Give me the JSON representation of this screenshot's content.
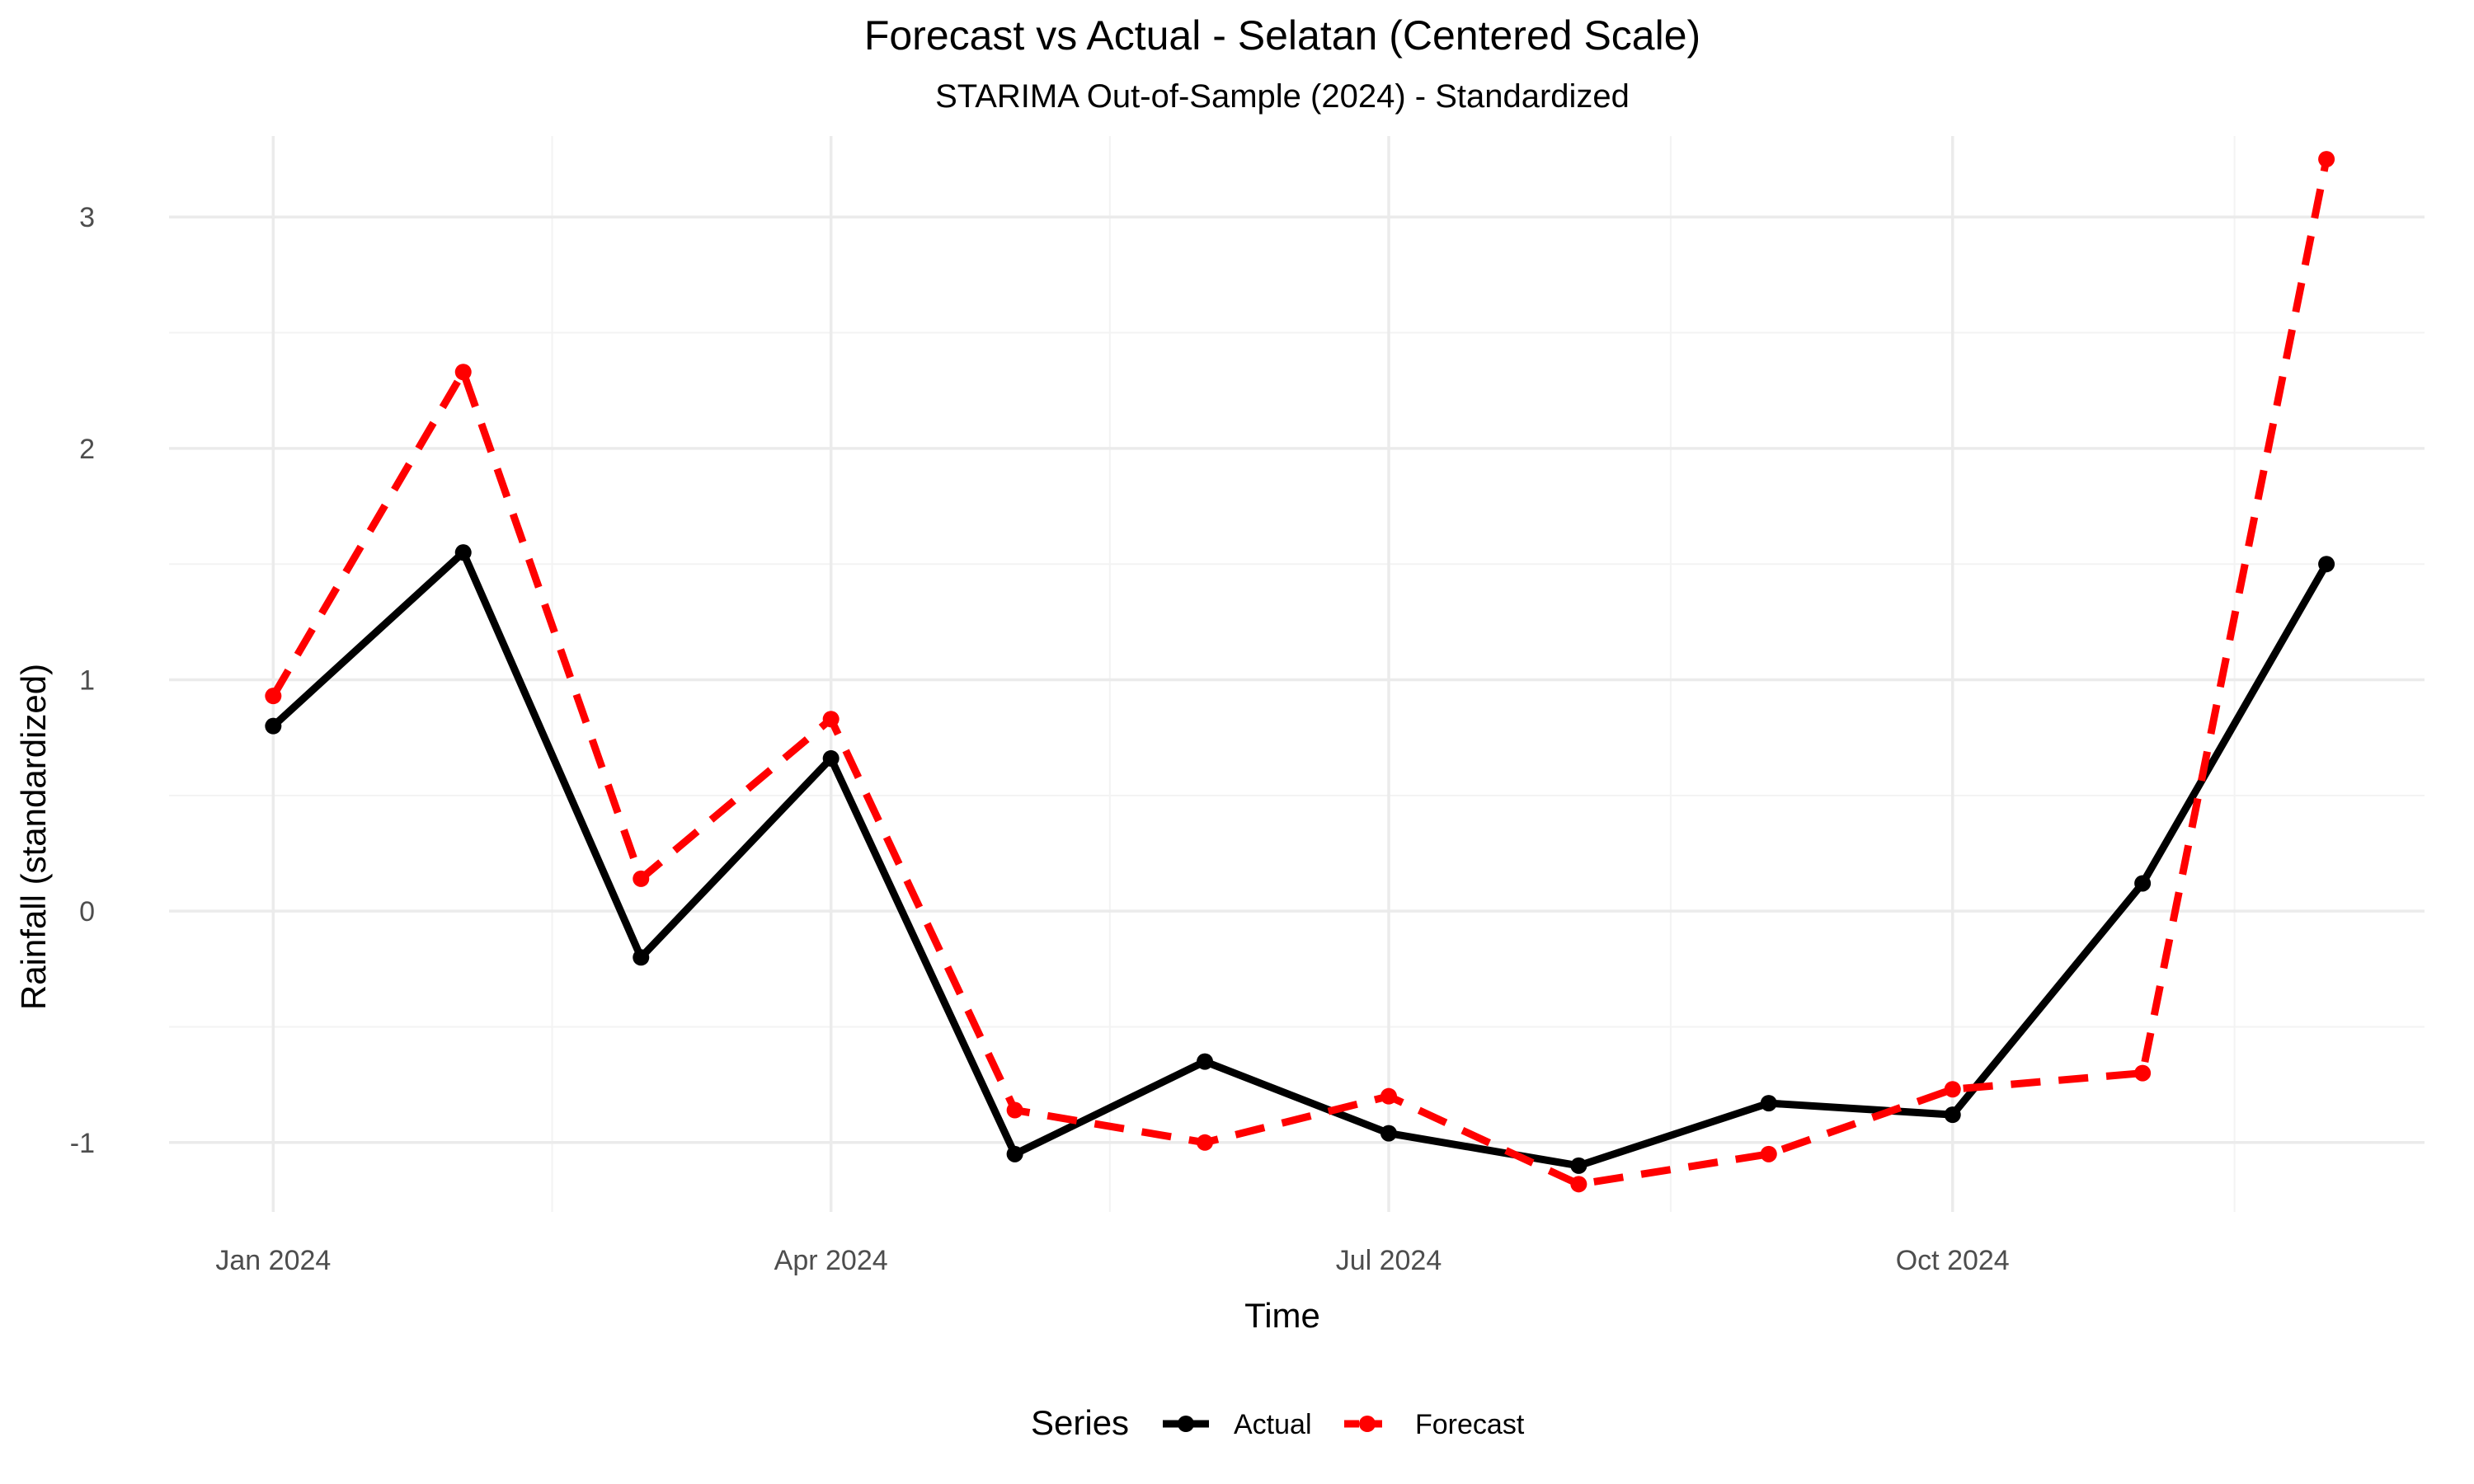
{
  "chart_data": {
    "type": "line",
    "title": "Forecast vs Actual - Selatan (Centered Scale)",
    "subtitle": "STARIMA Out-of-Sample (2024) - Standardized",
    "xlabel": "Time",
    "ylabel": "Rainfall (standardized)",
    "x": [
      "2024-01-01",
      "2024-02-01",
      "2024-03-01",
      "2024-04-01",
      "2024-05-01",
      "2024-06-01",
      "2024-07-01",
      "2024-08-01",
      "2024-09-01",
      "2024-10-01",
      "2024-11-01",
      "2024-12-01"
    ],
    "x_ticks": [
      {
        "date": "2024-01-01",
        "label": "Jan 2024"
      },
      {
        "date": "2024-04-01",
        "label": "Apr 2024"
      },
      {
        "date": "2024-07-01",
        "label": "Jul 2024"
      },
      {
        "date": "2024-10-01",
        "label": "Oct 2024"
      }
    ],
    "y_ticks": [
      -1,
      0,
      1,
      2,
      3
    ],
    "ylim": [
      -1.3,
      3.35
    ],
    "xlim": [
      "2023-12-15",
      "2024-12-17"
    ],
    "grid": true,
    "legend": {
      "title": "Series",
      "position": "bottom"
    },
    "series": [
      {
        "name": "Actual",
        "color": "#000000",
        "dash": "solid",
        "values": [
          0.8,
          1.55,
          -0.2,
          0.66,
          -1.05,
          -0.65,
          -0.96,
          -1.1,
          -0.83,
          -0.88,
          0.12,
          1.5
        ]
      },
      {
        "name": "Forecast",
        "color": "#ff0000",
        "dash": "dashed",
        "values": [
          0.93,
          2.33,
          0.14,
          0.83,
          -0.86,
          -1.0,
          -0.8,
          -1.18,
          -1.05,
          -0.77,
          -0.7,
          3.25
        ]
      }
    ]
  }
}
